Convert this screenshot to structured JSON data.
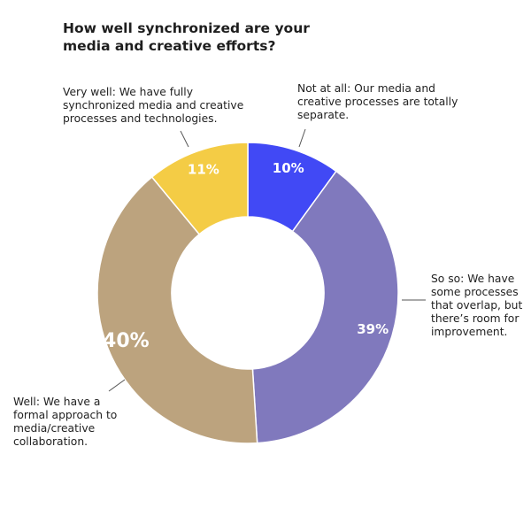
{
  "chart_data": {
    "type": "pie",
    "title": "How well synchronized are your media and creative efforts?",
    "donut": true,
    "start_angle_deg": 0,
    "direction": "clockwise",
    "slices": [
      {
        "label": "Not at all: Our media and creative processes are totally separate.",
        "value": 10,
        "value_label": "10%",
        "color": "#4149F5"
      },
      {
        "label": "So so: We have some processes that overlap, but there’s room for improvement.",
        "value": 39,
        "value_label": "39%",
        "color": "#8079BD"
      },
      {
        "label": "Well: We have a formal approach to media/creative collaboration.",
        "value": 40,
        "value_label": "40%",
        "color": "#BCA37E"
      },
      {
        "label": "Very well: We have fully synchronized media and creative processes and technologies.",
        "value": 11,
        "value_label": "11%",
        "color": "#F4CC45"
      }
    ],
    "legend": "none"
  }
}
